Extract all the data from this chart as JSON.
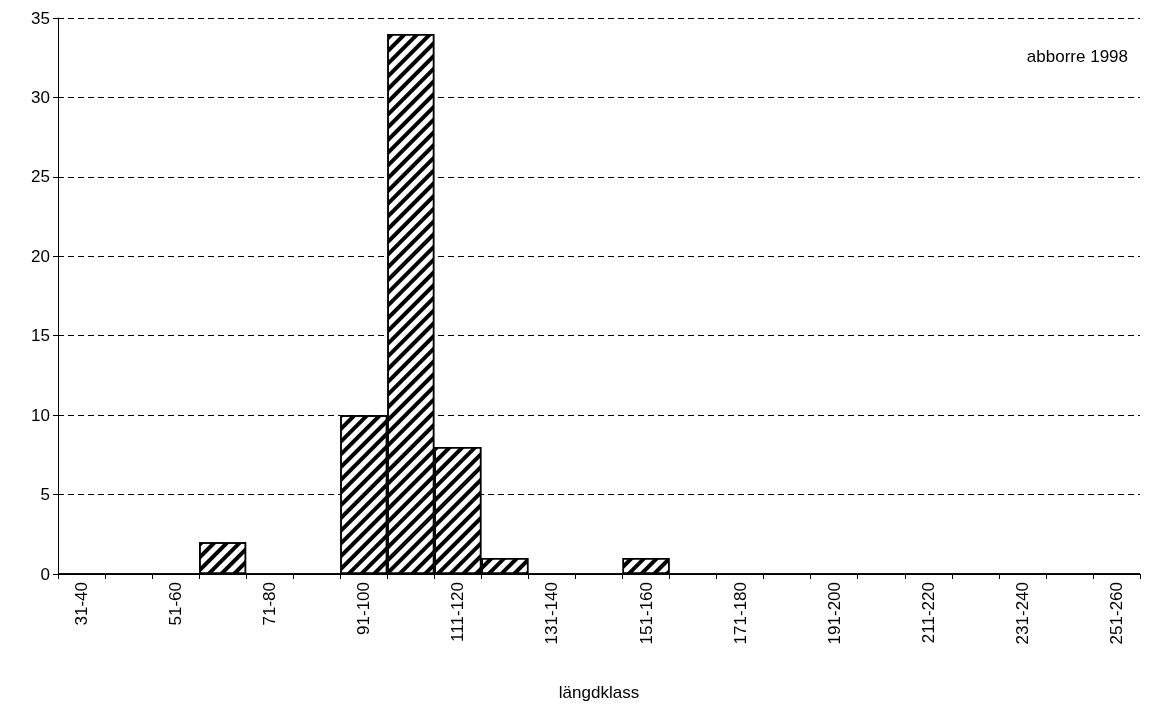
{
  "chart_data": {
    "type": "bar",
    "xlabel": "längdklass",
    "annotations": [
      "abborre 1998"
    ],
    "categories": [
      "31-40",
      null,
      "51-60",
      null,
      "71-80",
      null,
      "91-100",
      null,
      "111-120",
      null,
      "131-140",
      null,
      "151-160",
      null,
      "171-180",
      null,
      "191-200",
      null,
      "211-220",
      null,
      "231-240",
      null,
      "251-260"
    ],
    "values": [
      0,
      0,
      0,
      2,
      0,
      0,
      10,
      34,
      8,
      1,
      0,
      0,
      1,
      0,
      0,
      0,
      0,
      0,
      0,
      0,
      0,
      0,
      0
    ],
    "color": "#000000",
    "ylim": [
      0,
      35
    ],
    "yticks": [
      0,
      5,
      10,
      15,
      20,
      25,
      30,
      35
    ],
    "grid": "y"
  }
}
